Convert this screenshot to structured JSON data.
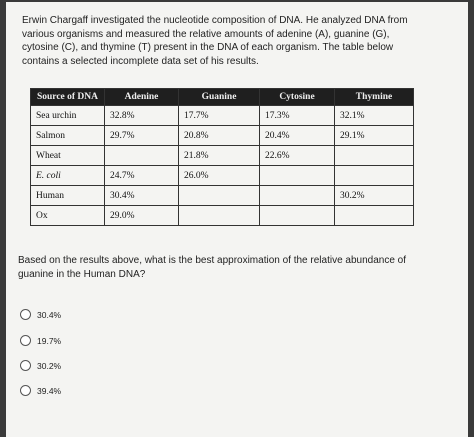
{
  "intro": "Erwin Chargaff investigated the nucleotide composition of DNA. He analyzed DNA from various organisms and measured the relative amounts of adenine (A), guanine (G), cytosine (C), and thymine (T) present in the DNA of each organism. The table below contains a selected incomplete data set of his results.",
  "table": {
    "header": [
      "Source of DNA",
      "Adenine",
      "Guanine",
      "Cytosine",
      "Thymine"
    ],
    "rows": [
      [
        "Sea urchin",
        "32.8%",
        "17.7%",
        "17.3%",
        "32.1%"
      ],
      [
        "Salmon",
        "29.7%",
        "20.8%",
        "20.4%",
        "29.1%"
      ],
      [
        "Wheat",
        null,
        "21.8%",
        "22.6%",
        null
      ],
      [
        "E. coli",
        "24.7%",
        "26.0%",
        null,
        null
      ],
      [
        "Human",
        "30.4%",
        null,
        null,
        "30.2%"
      ],
      [
        "Ox",
        "29.0%",
        null,
        null,
        null
      ]
    ]
  },
  "question": "Based on the results above, what is the best approximation of the relative abundance of guanine in the Human DNA?",
  "options": [
    "30.4%",
    "19.7%",
    "30.2%",
    "39.4%"
  ]
}
